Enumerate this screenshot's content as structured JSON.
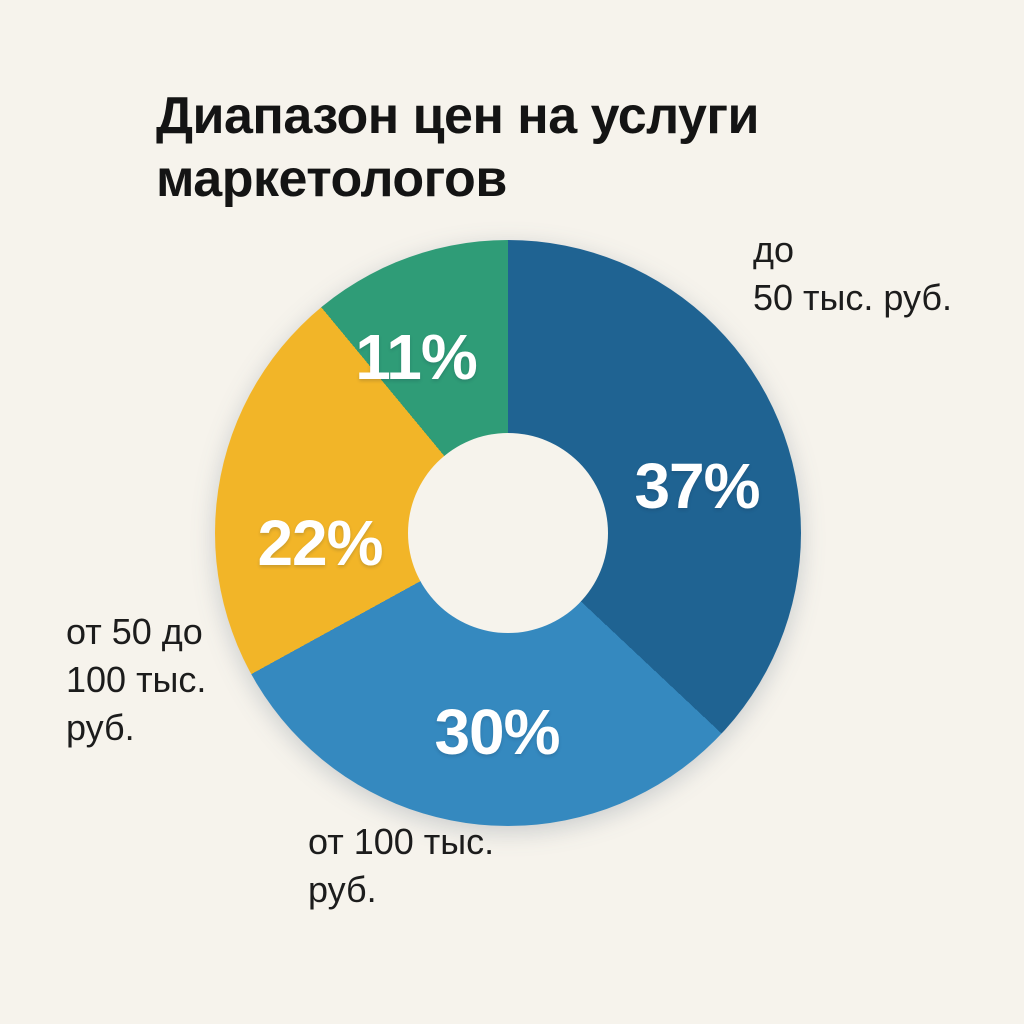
{
  "page": {
    "background": "#F6F3EC",
    "title": "Диапазон цен на услуги маркетологов"
  },
  "chart_data": {
    "type": "pie",
    "subtype": "donut",
    "title": "Диапазон цен на услуги маркетологов",
    "start_angle_deg": 0,
    "direction": "clockwise",
    "hole_ratio": 0.34,
    "legend": "none",
    "text_color": "#1C1C1C",
    "percent_label_color": "#FFFFFF",
    "background": "#F6F3EC",
    "slices": [
      {
        "label": "до 50 тыс. руб.",
        "value": 37,
        "pct_label": "37%",
        "color": "#1F6392"
      },
      {
        "label": "от 100 тыс. руб.",
        "value": 30,
        "pct_label": "30%",
        "color": "#3589BF"
      },
      {
        "label": "от 50 до 100 тыс. руб.",
        "value": 22,
        "pct_label": "22%",
        "color": "#F2B528"
      },
      {
        "label": "",
        "value": 11,
        "pct_label": "11%",
        "color": "#2F9C77"
      }
    ],
    "annotations": [
      {
        "for_slice": "до 50 тыс. руб.",
        "lines": [
          "до",
          "50 тыс. руб."
        ]
      },
      {
        "for_slice": "от 50 до 100 тыс. руб.",
        "lines": [
          "от 50 до",
          "100 тыс.",
          "руб."
        ]
      },
      {
        "for_slice": "от 100 тыс. руб.",
        "lines": [
          "от 100 тыс.",
          "руб."
        ]
      }
    ]
  }
}
